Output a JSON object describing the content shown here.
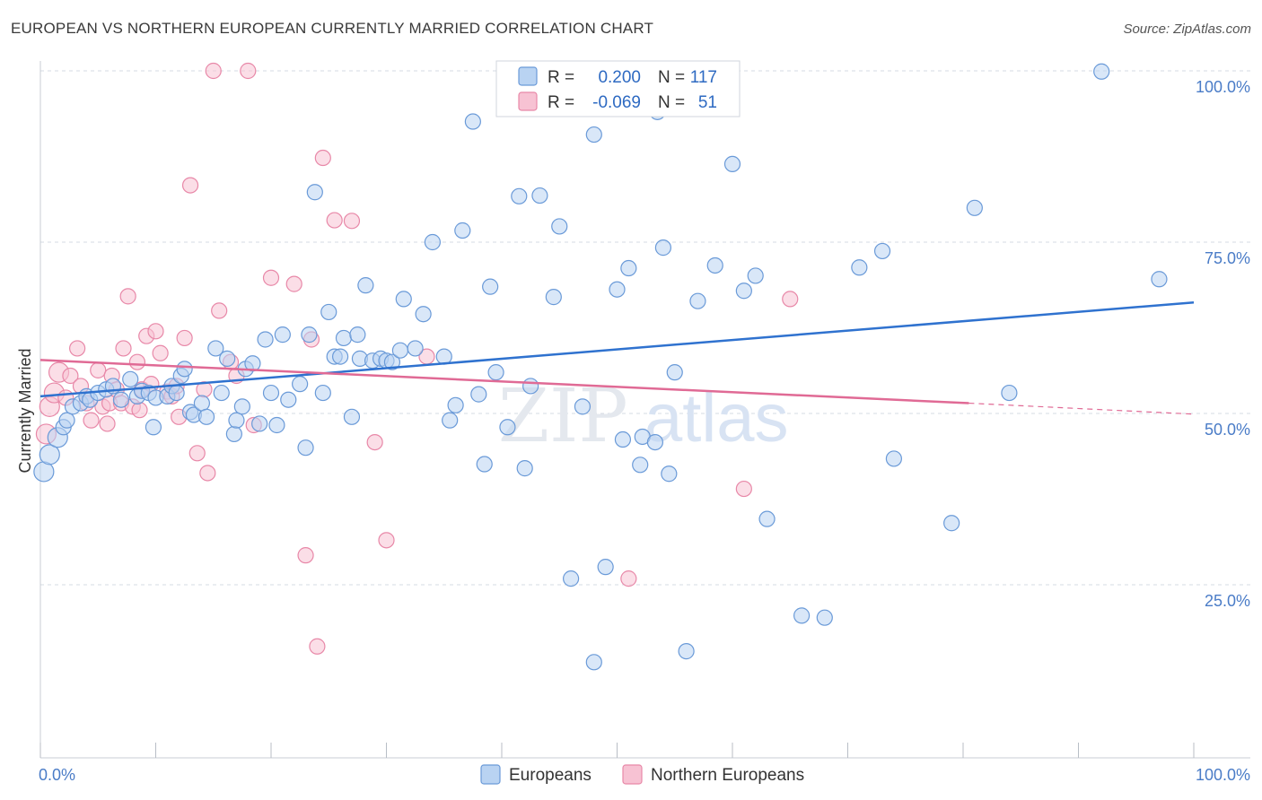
{
  "title": "EUROPEAN VS NORTHERN EUROPEAN CURRENTLY MARRIED CORRELATION CHART",
  "source": "Source: ZipAtlas.com",
  "colors": {
    "blue_fill": "#b9d3f2",
    "blue_stroke": "#6a9ad8",
    "blue_line": "#2f72cf",
    "pink_fill": "#f7c2d3",
    "pink_stroke": "#e888a8",
    "pink_line": "#e06a95",
    "grid": "#d6dbe3",
    "tick_text": "#4a7cc7"
  },
  "chart_data": {
    "type": "scatter",
    "title": "EUROPEAN VS NORTHERN EUROPEAN CURRENTLY MARRIED CORRELATION CHART",
    "xlabel": "",
    "ylabel": "Currently Married",
    "xlim": [
      0,
      100
    ],
    "ylim": [
      0,
      102
    ],
    "x_tick_labels": [
      "0.0%",
      "100.0%"
    ],
    "y_ticks": [
      {
        "value": 25,
        "label": "25.0%"
      },
      {
        "value": 50,
        "label": "50.0%"
      },
      {
        "value": 75,
        "label": "75.0%"
      },
      {
        "value": 100,
        "label": "100.0%"
      }
    ],
    "legend": {
      "rows": [
        {
          "r_label": "R =",
          "r_value": "0.200",
          "n_label": "N =",
          "n_value": "117"
        },
        {
          "r_label": "R =",
          "r_value": "-0.069",
          "n_label": "N =",
          "n_value": "51"
        }
      ]
    },
    "watermark": "ZIPatlas",
    "series": [
      {
        "name": "Europeans",
        "color": "#b9d3f2",
        "trend": {
          "x": [
            0,
            100
          ],
          "y": [
            52.5,
            66.2
          ],
          "dashed_from": null
        },
        "points": [
          [
            0.3,
            41.5
          ],
          [
            0.8,
            44
          ],
          [
            1.5,
            46.5
          ],
          [
            2,
            48
          ],
          [
            2.3,
            49
          ],
          [
            2.8,
            51
          ],
          [
            3.5,
            51.5
          ],
          [
            4,
            52.5
          ],
          [
            4.3,
            52
          ],
          [
            5,
            53
          ],
          [
            5.7,
            53.5
          ],
          [
            6.3,
            54
          ],
          [
            7,
            52
          ],
          [
            7.8,
            55
          ],
          [
            8.4,
            52.5
          ],
          [
            8.8,
            53.3
          ],
          [
            9.4,
            53
          ],
          [
            9.8,
            48
          ],
          [
            10,
            52.3
          ],
          [
            11,
            52.5
          ],
          [
            11.4,
            54
          ],
          [
            11.8,
            53
          ],
          [
            12.2,
            55.5
          ],
          [
            12.5,
            56.5
          ],
          [
            13,
            50.2
          ],
          [
            13.3,
            49.8
          ],
          [
            14,
            51.5
          ],
          [
            14.4,
            49.5
          ],
          [
            15.2,
            59.5
          ],
          [
            15.7,
            53
          ],
          [
            16.2,
            58
          ],
          [
            16.8,
            47
          ],
          [
            17,
            49
          ],
          [
            17.5,
            51
          ],
          [
            17.8,
            56.5
          ],
          [
            18.4,
            57.3
          ],
          [
            19,
            48.5
          ],
          [
            19.5,
            60.8
          ],
          [
            20,
            53
          ],
          [
            20.5,
            48.3
          ],
          [
            21,
            61.5
          ],
          [
            21.5,
            52
          ],
          [
            22.5,
            54.3
          ],
          [
            23,
            45
          ],
          [
            23.3,
            61.5
          ],
          [
            23.8,
            82.3
          ],
          [
            24.5,
            53
          ],
          [
            25,
            64.8
          ],
          [
            25.5,
            58.3
          ],
          [
            26,
            58.3
          ],
          [
            26.3,
            61
          ],
          [
            27,
            49.5
          ],
          [
            27.5,
            61.5
          ],
          [
            27.7,
            58
          ],
          [
            28.2,
            68.7
          ],
          [
            28.8,
            57.7
          ],
          [
            29.5,
            58
          ],
          [
            30,
            57.7
          ],
          [
            30.5,
            57.5
          ],
          [
            31.2,
            59.2
          ],
          [
            31.5,
            66.7
          ],
          [
            32.5,
            59.5
          ],
          [
            33.2,
            64.5
          ],
          [
            34,
            75
          ],
          [
            35,
            58.3
          ],
          [
            35.5,
            49
          ],
          [
            36,
            51.2
          ],
          [
            36.6,
            76.7
          ],
          [
            37.5,
            92.6
          ],
          [
            38,
            52.8
          ],
          [
            38.5,
            42.6
          ],
          [
            39,
            68.5
          ],
          [
            39.5,
            56
          ],
          [
            40.5,
            48
          ],
          [
            41.5,
            81.7
          ],
          [
            42,
            42
          ],
          [
            42.5,
            54
          ],
          [
            43.3,
            81.8
          ],
          [
            44.5,
            67
          ],
          [
            45,
            77.3
          ],
          [
            47,
            51
          ],
          [
            48,
            90.7
          ],
          [
            49,
            27.6
          ],
          [
            50,
            68.1
          ],
          [
            50.5,
            46.2
          ],
          [
            51,
            71.2
          ],
          [
            52,
            42.5
          ],
          [
            52.2,
            46.6
          ],
          [
            53.3,
            45.8
          ],
          [
            53.5,
            94
          ],
          [
            54,
            74.2
          ],
          [
            54.5,
            41.2
          ],
          [
            55,
            56
          ],
          [
            56,
            15.3
          ],
          [
            57,
            66.4
          ],
          [
            58.5,
            71.6
          ],
          [
            60,
            86.4
          ],
          [
            61,
            67.9
          ],
          [
            62,
            70.1
          ],
          [
            63,
            34.6
          ],
          [
            66,
            20.5
          ],
          [
            68,
            20.2
          ],
          [
            71,
            71.3
          ],
          [
            73,
            73.7
          ],
          [
            74,
            43.4
          ],
          [
            79,
            34
          ],
          [
            81,
            80
          ],
          [
            84,
            53
          ],
          [
            97,
            69.6
          ],
          [
            92,
            99.9
          ],
          [
            48,
            13.7
          ],
          [
            46,
            25.9
          ]
        ]
      },
      {
        "name": "Northern Europeans",
        "color": "#f7c2d3",
        "trend": {
          "x": [
            0,
            80.5,
            100
          ],
          "y": [
            57.8,
            51.5,
            49.9
          ],
          "dashed_from": 80.5
        },
        "points": [
          [
            0.5,
            47
          ],
          [
            0.8,
            51
          ],
          [
            1.2,
            53
          ],
          [
            1.6,
            56
          ],
          [
            2.2,
            52.3
          ],
          [
            2.6,
            55.5
          ],
          [
            3.2,
            59.5
          ],
          [
            3.5,
            54
          ],
          [
            4,
            51.5
          ],
          [
            4.4,
            49
          ],
          [
            5,
            56.3
          ],
          [
            5.4,
            51
          ],
          [
            5.8,
            48.5
          ],
          [
            6,
            51.5
          ],
          [
            6.2,
            55.5
          ],
          [
            6.6,
            53.5
          ],
          [
            7,
            51.5
          ],
          [
            7.2,
            59.5
          ],
          [
            7.6,
            67.1
          ],
          [
            8,
            51
          ],
          [
            8.4,
            57.5
          ],
          [
            8.6,
            50.5
          ],
          [
            8.8,
            53.5
          ],
          [
            9.2,
            61.3
          ],
          [
            9.6,
            54.3
          ],
          [
            10,
            62
          ],
          [
            10.4,
            58.8
          ],
          [
            11,
            53.2
          ],
          [
            11.4,
            52.5
          ],
          [
            11.8,
            54
          ],
          [
            12,
            49.5
          ],
          [
            12.5,
            61
          ],
          [
            13,
            83.3
          ],
          [
            13.6,
            44.2
          ],
          [
            14.2,
            53.5
          ],
          [
            14.5,
            41.3
          ],
          [
            15.5,
            65
          ],
          [
            16.5,
            57.5
          ],
          [
            17,
            55.5
          ],
          [
            18.5,
            48.3
          ],
          [
            20,
            69.8
          ],
          [
            22,
            68.9
          ],
          [
            23,
            29.3
          ],
          [
            23.5,
            60.8
          ],
          [
            24,
            16
          ],
          [
            24.5,
            87.3
          ],
          [
            25.5,
            78.2
          ],
          [
            27,
            78.1
          ],
          [
            29,
            45.8
          ],
          [
            30,
            31.5
          ],
          [
            33.5,
            58.3
          ],
          [
            51,
            25.9
          ],
          [
            61,
            39
          ],
          [
            65,
            66.7
          ],
          [
            15,
            100
          ],
          [
            18,
            100
          ]
        ]
      }
    ]
  },
  "bottom_legend": [
    {
      "label": "Europeans"
    },
    {
      "label": "Northern Europeans"
    }
  ]
}
